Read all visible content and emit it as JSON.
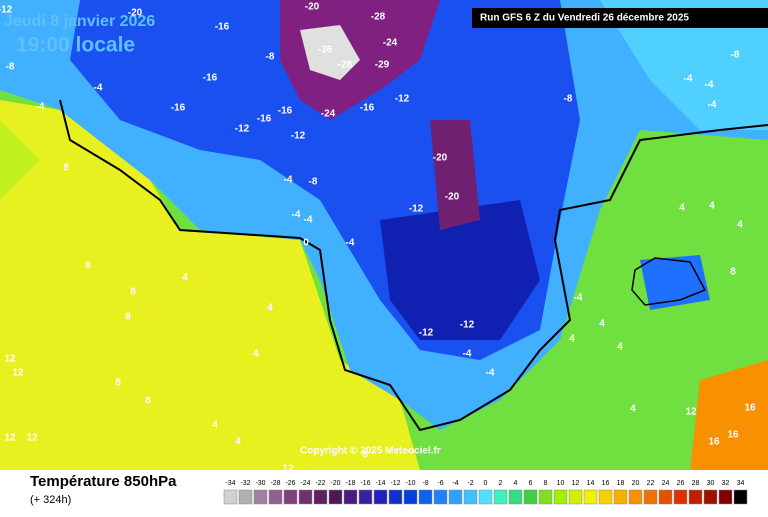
{
  "header": {
    "date": "Jeudi 8 janvier 2026",
    "time": "19:00 locale",
    "run": "Run GFS 6 Z du Vendredi 26 décembre 2025"
  },
  "copyright": "Copyright © 2025 Meteociel.fr",
  "legend": {
    "title": "Température 850hPa",
    "lead": "(+ 324h)",
    "ticks": [
      -34,
      -32,
      -30,
      -28,
      -26,
      -24,
      -22,
      -20,
      -18,
      -16,
      -14,
      -12,
      -10,
      -8,
      -6,
      -4,
      -2,
      0,
      2,
      4,
      6,
      8,
      10,
      12,
      14,
      16,
      18,
      20,
      22,
      24,
      26,
      28,
      30,
      32,
      34
    ],
    "colors": [
      "#d0d0d0",
      "#b0b0b0",
      "#a080a0",
      "#906090",
      "#804080",
      "#703070",
      "#602060",
      "#501850",
      "#4a1a80",
      "#3a20a0",
      "#2020c0",
      "#1030d0",
      "#0040e0",
      "#1060f0",
      "#2080ff",
      "#30a0ff",
      "#40c0ff",
      "#50e0ff",
      "#40f0c0",
      "#30e080",
      "#40d040",
      "#80e020",
      "#a0f000",
      "#d0f000",
      "#f0f000",
      "#f8d000",
      "#f8b000",
      "#f89000",
      "#f07000",
      "#e85000",
      "#e03000",
      "#c02000",
      "#a01000",
      "#800000",
      "#000000"
    ]
  },
  "map": {
    "labels": [
      -12,
      -20,
      -16,
      -20,
      -28,
      -36,
      -28,
      -24,
      -29,
      -8,
      -16,
      -4,
      -8,
      -16,
      -16,
      -16,
      -24,
      -16,
      -12,
      -12,
      -12,
      -8,
      -20,
      -20,
      -12,
      -8,
      -4,
      -4,
      -4,
      0,
      -4,
      -4,
      8,
      8,
      8,
      8,
      4,
      4,
      4,
      12,
      12,
      8,
      8,
      4,
      4,
      12,
      12,
      12,
      8,
      -12,
      -12,
      -4,
      -4,
      4,
      4,
      4,
      4,
      12,
      16,
      16,
      16,
      8,
      4,
      4,
      4,
      -4,
      -4,
      -4,
      -8,
      -4
    ]
  }
}
